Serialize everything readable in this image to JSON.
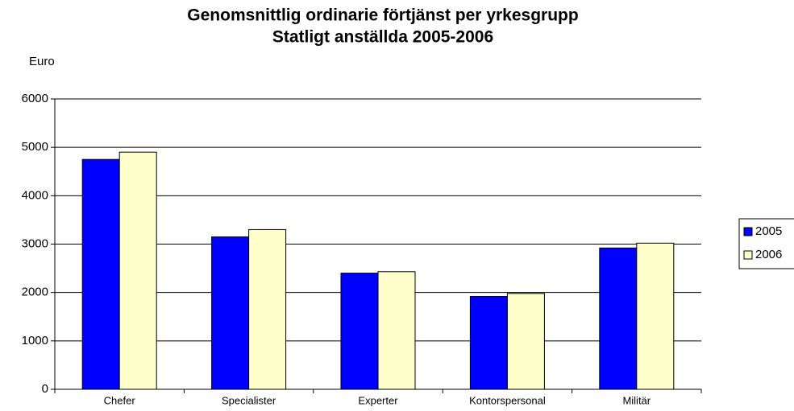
{
  "chart_data": {
    "type": "bar",
    "title": "Genomsnittlig ordinarie förtjänst per yrkesgrupp",
    "subtitle": "Statligt anställda 2005-2006",
    "y_label": "Euro",
    "categories": [
      "Chefer",
      "Specialister",
      "Experter",
      "Kontorspersonal",
      "Militär"
    ],
    "series": [
      {
        "name": "2005",
        "color": "#0000ff",
        "values": [
          4750,
          3150,
          2400,
          1920,
          2920
        ]
      },
      {
        "name": "2006",
        "color": "#ffffcc",
        "values": [
          4900,
          3300,
          2430,
          1980,
          3020
        ]
      }
    ],
    "ylim": [
      0,
      6000
    ],
    "yticks": [
      0,
      1000,
      2000,
      3000,
      4000,
      5000,
      6000
    ],
    "grid": true,
    "legend": "right"
  }
}
